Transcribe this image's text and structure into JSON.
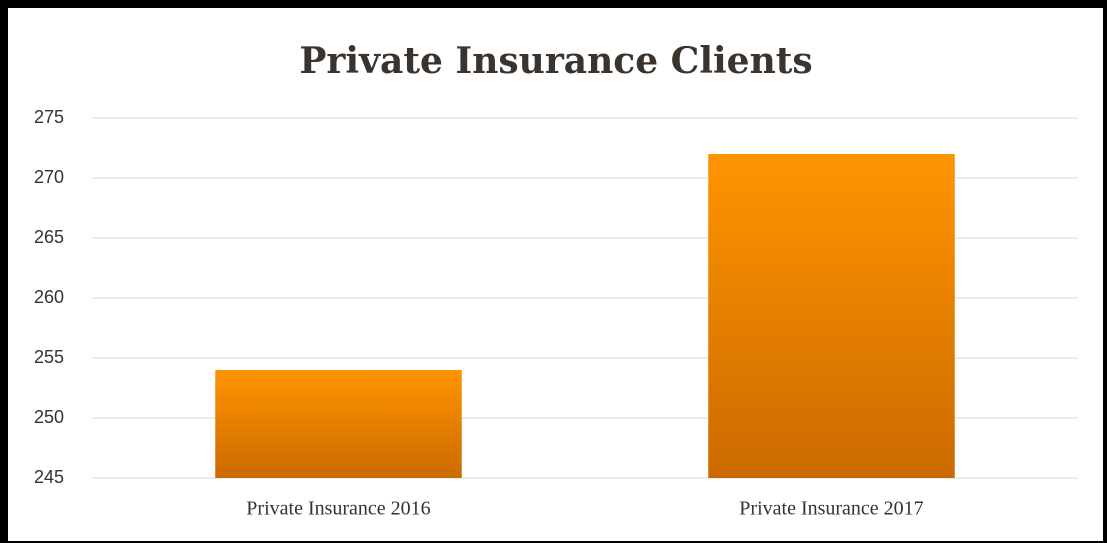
{
  "chart_data": {
    "type": "bar",
    "title": "Private Insurance Clients",
    "categories": [
      "Private Insurance 2016",
      "Private Insurance 2017"
    ],
    "values": [
      254,
      272
    ],
    "color": "#ff9400",
    "ylim": [
      245,
      275
    ],
    "yticks": [
      245,
      250,
      255,
      260,
      265,
      270,
      275
    ],
    "grid": true
  }
}
